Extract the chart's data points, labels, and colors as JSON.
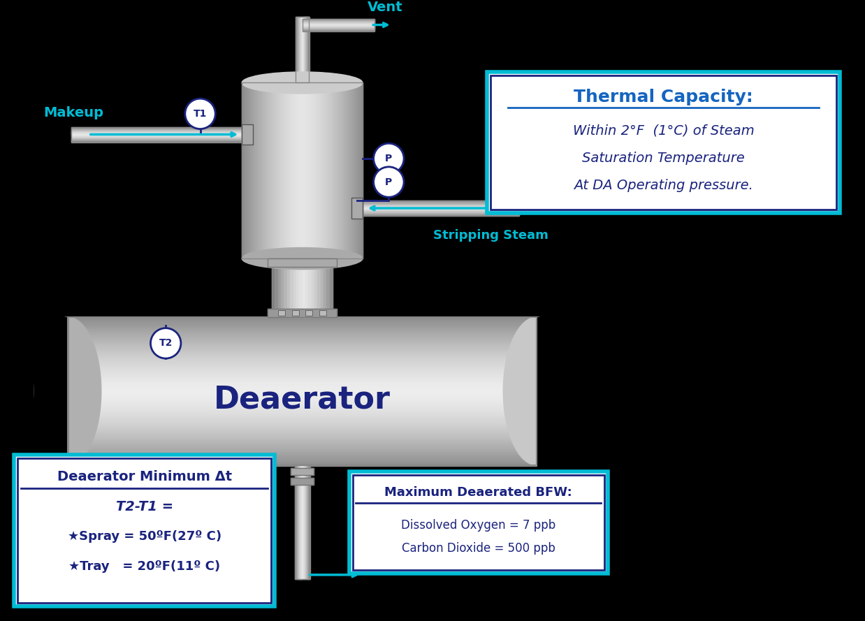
{
  "background_color": "#000000",
  "dark_blue": "#1a237e",
  "mid_blue": "#1565c0",
  "cyan": "#00bcd4",
  "label_blue": "#0d47a1",
  "title": "Deaerator",
  "title_color": "#1a237e",
  "thermal_capacity_title": "Thermal Capacity:",
  "thermal_capacity_line1": "Within 2°F  (1°C) of Steam",
  "thermal_capacity_line2": "Saturation Temperature",
  "thermal_capacity_line3": "At DA Operating pressure.",
  "box1_title": "Deaerator Minimum Δt",
  "box1_line1": "T2-T1 =",
  "box1_line2": "★Spray = 50ºF(27º C)",
  "box1_line3": "★Tray   = 20ºF(11º C)",
  "box2_title": "Maximum Deaerated BFW:",
  "box2_line1": "Dissolved Oxygen = 7 ppb",
  "box2_line2": "Carbon Dioxide = 500 ppb",
  "vent_label": "Vent",
  "makeup_label": "Makeup",
  "stripping_steam_label": "Stripping Steam"
}
